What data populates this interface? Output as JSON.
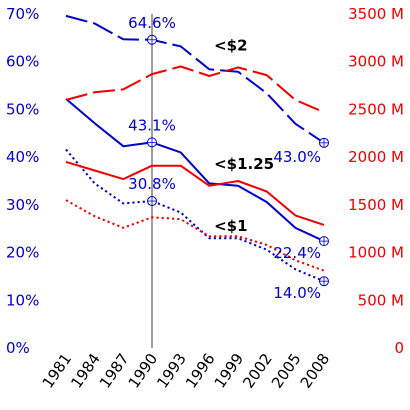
{
  "chart_data": {
    "type": "line",
    "x": [
      1981,
      1984,
      1987,
      1990,
      1993,
      1996,
      1999,
      2002,
      2005,
      2008
    ],
    "x_tick_labels": [
      "1981",
      "1984",
      "1987",
      "1990",
      "1993",
      "1996",
      "1999",
      "2002",
      "2005",
      "2008"
    ],
    "left_axis": {
      "ylim": [
        0,
        70
      ],
      "ticks": [
        0,
        10,
        20,
        30,
        40,
        50,
        60,
        70
      ],
      "tick_labels": [
        "0%",
        "10%",
        "20%",
        "30%",
        "40%",
        "50%",
        "60%",
        "70%"
      ],
      "color": "#0000cc"
    },
    "right_axis": {
      "ylim": [
        0,
        3500
      ],
      "ticks": [
        0,
        500,
        1000,
        1500,
        2000,
        2500,
        3000,
        3500
      ],
      "tick_labels": [
        "0",
        "500 M",
        "1000 M",
        "1500 M",
        "2000 M",
        "2500 M",
        "3000 M",
        "3500 M"
      ],
      "color": "#ee0000"
    },
    "highlight_x": 1990,
    "series": [
      {
        "name": "<$2",
        "axis": "left",
        "color": "#0000cc",
        "dash": "long",
        "values": [
          69.6,
          68.0,
          64.7,
          64.6,
          63.2,
          58.4,
          57.9,
          53.4,
          47.0,
          43.0
        ]
      },
      {
        "name": "<$1.25",
        "axis": "left",
        "color": "#0000cc",
        "dash": "solid",
        "values": [
          52.2,
          47.1,
          42.3,
          43.1,
          41.0,
          34.5,
          34.0,
          30.6,
          25.2,
          22.4
        ]
      },
      {
        "name": "<$1",
        "axis": "left",
        "color": "#0000cc",
        "dash": "dotted",
        "values": [
          41.6,
          34.5,
          30.3,
          30.8,
          28.4,
          23.0,
          23.0,
          20.6,
          16.5,
          14.0
        ]
      },
      {
        "name": "<$2",
        "axis": "right",
        "color": "#ee0000",
        "dash": "long",
        "values": [
          2600,
          2680,
          2710,
          2870,
          2950,
          2850,
          2940,
          2860,
          2600,
          2470
        ]
      },
      {
        "name": "<$1.25",
        "axis": "right",
        "color": "#ee0000",
        "dash": "solid",
        "values": [
          1950,
          1860,
          1770,
          1910,
          1910,
          1700,
          1750,
          1640,
          1390,
          1290
        ]
      },
      {
        "name": "<$1",
        "axis": "right",
        "color": "#ee0000",
        "dash": "dotted",
        "values": [
          1550,
          1380,
          1260,
          1370,
          1350,
          1170,
          1170,
          1080,
          920,
          810
        ]
      }
    ],
    "series_labels": [
      {
        "text": "<$2",
        "x": 1996.5,
        "y": 62.4
      },
      {
        "text": "<$1.25",
        "x": 1996.5,
        "y": 37.5
      },
      {
        "text": "<$1",
        "x": 1996.5,
        "y": 24.5
      }
    ],
    "data_labels": [
      {
        "text": "64.6%",
        "x": 1990,
        "y": 64.6,
        "dx": 0,
        "dy": -12,
        "anchor": "middle"
      },
      {
        "text": "43.1%",
        "x": 1990,
        "y": 43.1,
        "dx": 0,
        "dy": -12,
        "anchor": "middle"
      },
      {
        "text": "30.8%",
        "x": 1990,
        "y": 30.8,
        "dx": 0,
        "dy": -12,
        "anchor": "middle"
      },
      {
        "text": "43.0%",
        "x": 2008,
        "y": 43.0,
        "dx": -3,
        "dy": 19,
        "anchor": "end"
      },
      {
        "text": "22.4%",
        "x": 2008,
        "y": 22.4,
        "dx": -3,
        "dy": 17,
        "anchor": "end"
      },
      {
        "text": "14.0%",
        "x": 2008,
        "y": 14.0,
        "dx": -3,
        "dy": 17,
        "anchor": "end"
      }
    ],
    "markers": [
      {
        "x": 1990,
        "y": 64.6
      },
      {
        "x": 1990,
        "y": 43.1
      },
      {
        "x": 1990,
        "y": 30.8
      },
      {
        "x": 2008,
        "y": 43.0
      },
      {
        "x": 2008,
        "y": 22.4
      },
      {
        "x": 2008,
        "y": 14.0
      }
    ]
  }
}
